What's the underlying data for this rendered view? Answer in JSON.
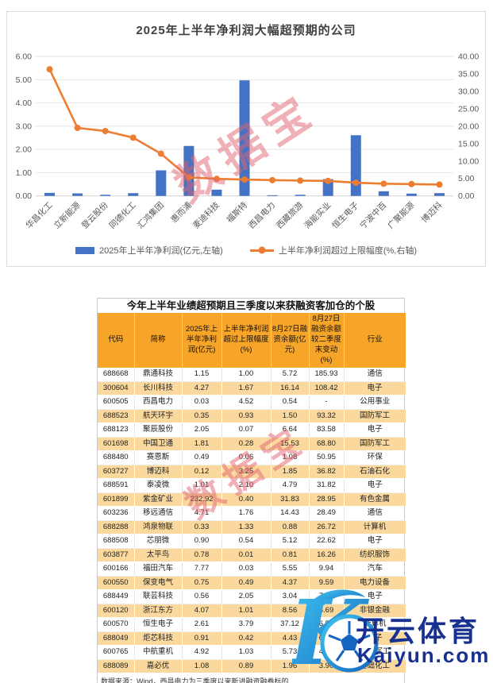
{
  "chart": {
    "title": "2025年上半年净利润大幅超预期的公司",
    "colors": {
      "bar": "#4472C4",
      "line": "#ED7D31",
      "grid": "#e4e4e4",
      "axis_text": "#595959"
    }
  },
  "chart_data": {
    "type": "bar",
    "subtype": "combo bar+line, dual axis",
    "title": "2025年上半年净利润大幅超预期的公司",
    "categories": [
      "华昌化工",
      "立新能源",
      "登云股份",
      "同德化工",
      "汇鸿集团",
      "惠而浦",
      "麦迪科技",
      "福斯特",
      "西昌电力",
      "西藏旅游",
      "海能实业",
      "恒生电子",
      "宁波中百",
      "广聚能源",
      "博迈科"
    ],
    "series": [
      {
        "name": "2025年上半年净利润(亿元,左轴)",
        "type": "bar",
        "axis": "left",
        "values": [
          0.13,
          0.11,
          0.05,
          0.12,
          1.1,
          2.15,
          0.27,
          4.97,
          0.03,
          0.05,
          0.72,
          2.61,
          0.2,
          0.1,
          0.12
        ]
      },
      {
        "name": "上半年净利润超过上限幅度(%,右轴)",
        "type": "line",
        "axis": "right",
        "values": [
          36.3,
          19.5,
          18.6,
          16.7,
          12.1,
          5.3,
          4.9,
          4.7,
          4.52,
          4.4,
          4.3,
          3.79,
          3.5,
          3.4,
          3.25
        ]
      }
    ],
    "left_axis": {
      "min": 0,
      "max": 6,
      "ticks": [
        "6.00",
        "5.00",
        "4.00",
        "3.00",
        "2.00",
        "1.00",
        "0.00"
      ]
    },
    "right_axis": {
      "min": 0,
      "max": 40,
      "ticks": [
        "40.00",
        "35.00",
        "30.00",
        "25.00",
        "20.00",
        "15.00",
        "10.00",
        "5.00",
        "0.00"
      ]
    },
    "grid": true,
    "legend_position": "bottom"
  },
  "table": {
    "title": "今年上半年业绩超预期且三季度以来获融资客加仓的个股",
    "headers": [
      "代码",
      "简称",
      "2025年上半年净利润(亿元)",
      "上半年净利润超过上限幅度(%)",
      "8月27日融资余额(亿元)",
      "8月27日融资余额较二季度末变动(%)",
      "行业"
    ],
    "rows": [
      [
        "688668",
        "鼎通科技",
        "1.15",
        "1.00",
        "5.72",
        "185.93",
        "通信"
      ],
      [
        "300604",
        "长川科技",
        "4.27",
        "1.67",
        "16.14",
        "108.42",
        "电子"
      ],
      [
        "600505",
        "西昌电力",
        "0.03",
        "4.52",
        "0.54",
        "-",
        "公用事业"
      ],
      [
        "688523",
        "航天环宇",
        "0.35",
        "0.93",
        "1.50",
        "93.32",
        "国防军工"
      ],
      [
        "688123",
        "聚辰股份",
        "2.05",
        "0.07",
        "6.64",
        "83.58",
        "电子"
      ],
      [
        "601698",
        "中国卫通",
        "1.81",
        "0.28",
        "15.53",
        "68.80",
        "国防军工"
      ],
      [
        "688480",
        "赛恩斯",
        "0.49",
        "0.06",
        "1.08",
        "50.95",
        "环保"
      ],
      [
        "603727",
        "博迈科",
        "0.12",
        "3.25",
        "1.85",
        "36.82",
        "石油石化"
      ],
      [
        "688591",
        "泰凌微",
        "1.01",
        "2.10",
        "4.79",
        "31.82",
        "电子"
      ],
      [
        "601899",
        "紫金矿业",
        "232.92",
        "0.40",
        "31.83",
        "28.95",
        "有色金属"
      ],
      [
        "603236",
        "移远通信",
        "4.71",
        "1.76",
        "14.43",
        "28.49",
        "通信"
      ],
      [
        "688288",
        "鸿泉物联",
        "0.33",
        "1.33",
        "0.88",
        "26.72",
        "计算机"
      ],
      [
        "688508",
        "芯朋微",
        "0.90",
        "0.54",
        "5.12",
        "22.62",
        "电子"
      ],
      [
        "603877",
        "太平鸟",
        "0.78",
        "0.01",
        "0.81",
        "16.26",
        "纺织服饰"
      ],
      [
        "600166",
        "福田汽车",
        "7.77",
        "0.03",
        "5.55",
        "9.94",
        "汽车"
      ],
      [
        "600550",
        "保变电气",
        "0.75",
        "0.49",
        "4.37",
        "9.59",
        "电力设备"
      ],
      [
        "688449",
        "联芸科技",
        "0.56",
        "2.05",
        "3.04",
        "7.93",
        "电子"
      ],
      [
        "600120",
        "浙江东方",
        "4.07",
        "1.01",
        "8.56",
        "6.69",
        "非银金融"
      ],
      [
        "600570",
        "恒生电子",
        "2.61",
        "3.79",
        "37.12",
        "6.56",
        "计算机"
      ],
      [
        "688049",
        "炬芯科技",
        "0.91",
        "0.42",
        "4.43",
        "6.52",
        "电子"
      ],
      [
        "600765",
        "中航重机",
        "4.92",
        "1.03",
        "5.73",
        "4.31",
        "国防军工"
      ],
      [
        "688089",
        "嘉必优",
        "1.08",
        "0.89",
        "1.96",
        "3.90",
        "基础化工"
      ]
    ],
    "footer": "数据来源：Wind，西昌电力为三季度以来新进融资融券标的",
    "colors": {
      "header_bg": "#F7A528",
      "alt_row_bg": "#FBD99E"
    }
  },
  "watermarks": {
    "shujubao": "数据宝",
    "kaiyun_cn": "开云体育",
    "kaiyun_en": "Kaiyun.com",
    "kaiyun_color": "#18308f",
    "shujubao_color": "rgba(224,100,112,0.5)"
  }
}
